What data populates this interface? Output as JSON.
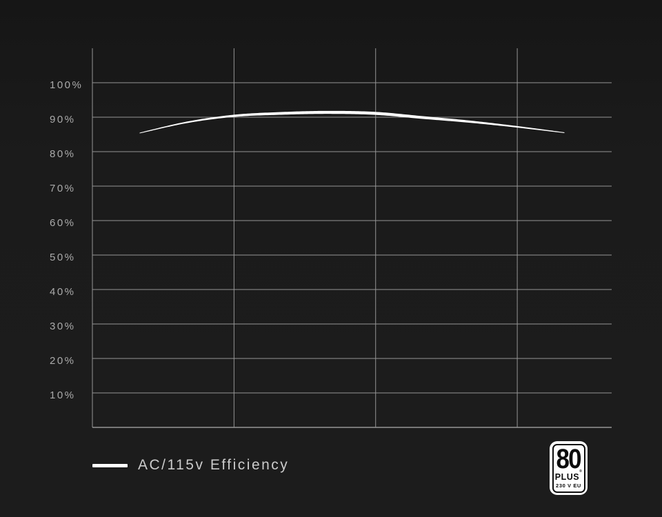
{
  "chart_data": {
    "type": "line",
    "title": "",
    "xlabel": "",
    "ylabel": "",
    "x": [
      10,
      20,
      30,
      40,
      50,
      60,
      70,
      80,
      90,
      100
    ],
    "series": [
      {
        "name": "AC/115v Efficiency",
        "color": "#ffffff",
        "values": [
          85.4,
          88.5,
          90.4,
          91.1,
          91.4,
          91.1,
          89.9,
          88.7,
          87.2,
          85.5
        ]
      }
    ],
    "xlim": [
      0,
      110
    ],
    "ylim": [
      0,
      110
    ],
    "x_gridlines": [
      0,
      30,
      60,
      90
    ],
    "y_gridlines": [
      10,
      20,
      30,
      40,
      50,
      60,
      70,
      80,
      90,
      100
    ],
    "y_tick_labels": [
      "10%",
      "20%",
      "30%",
      "40%",
      "50%",
      "60%",
      "70%",
      "80%",
      "90%",
      "100%"
    ],
    "grid": true,
    "grid_color": "#969696",
    "axis_color": "#a8a8a8",
    "legend_position": "bottom-left"
  },
  "legend": {
    "label": "AC/115v Efficiency",
    "swatch_color": "#ffffff"
  },
  "badge": {
    "number": "80",
    "plus": "PLUS",
    "registered": "®",
    "voltage": "230 V EU"
  },
  "colors": {
    "background": "#1a1a1a",
    "curve": "#ffffff",
    "gridline": "#969696",
    "tick_label": "#ababab",
    "legend_text": "#cbcbcb",
    "badge_background": "#ffffff",
    "badge_text": "#0c0c0c"
  }
}
